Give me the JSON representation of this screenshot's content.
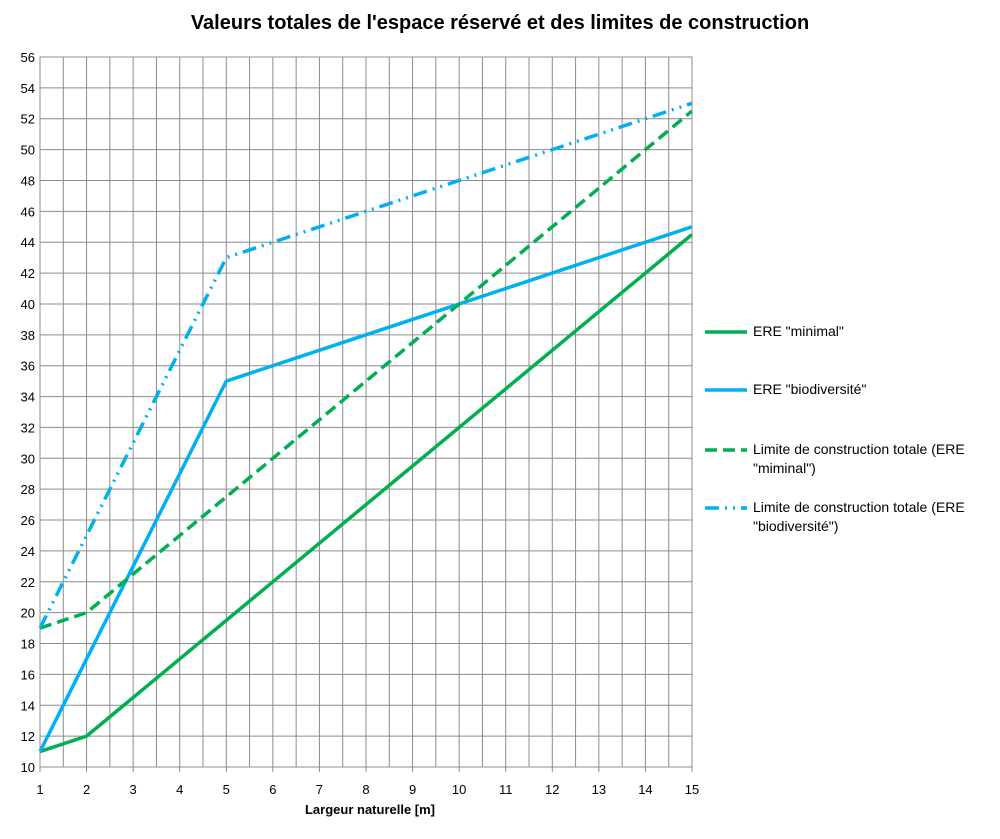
{
  "chart_data": {
    "type": "line",
    "title": "Valeurs totales de l'espace réservé et des limites de construction",
    "xlabel": "Largeur naturelle [m]",
    "ylabel": "",
    "xlim": [
      1,
      15
    ],
    "ylim": [
      10,
      56
    ],
    "x_ticks": [
      "1",
      "2",
      "3",
      "4",
      "5",
      "6",
      "7",
      "8",
      "9",
      "10",
      "11",
      "12",
      "13",
      "14",
      "15"
    ],
    "y_ticks": [
      "10",
      "12",
      "14",
      "16",
      "18",
      "20",
      "22",
      "24",
      "26",
      "28",
      "30",
      "32",
      "34",
      "36",
      "38",
      "40",
      "42",
      "44",
      "46",
      "48",
      "50",
      "52",
      "54",
      "56"
    ],
    "grid": true,
    "legend_position": "right",
    "series": [
      {
        "name": "ERE \"minimal\"",
        "color": "#00b050",
        "style": "solid",
        "x": [
          1,
          2,
          15
        ],
        "y": [
          11,
          12,
          44.5
        ]
      },
      {
        "name": "ERE \"biodiversité\"",
        "color": "#00b0f0",
        "style": "solid",
        "x": [
          1,
          5,
          15
        ],
        "y": [
          11,
          35,
          45
        ]
      },
      {
        "name": "Limite de construction totale (ERE \"miminal\")",
        "color": "#00b050",
        "style": "dashed",
        "x": [
          1,
          2,
          15
        ],
        "y": [
          19,
          20,
          52.5
        ]
      },
      {
        "name": "Limite de construction totale (ERE \"biodiversité\")",
        "color": "#00b0f0",
        "style": "dash-dot-dot",
        "x": [
          1,
          5,
          15
        ],
        "y": [
          19,
          43,
          53
        ]
      }
    ]
  }
}
